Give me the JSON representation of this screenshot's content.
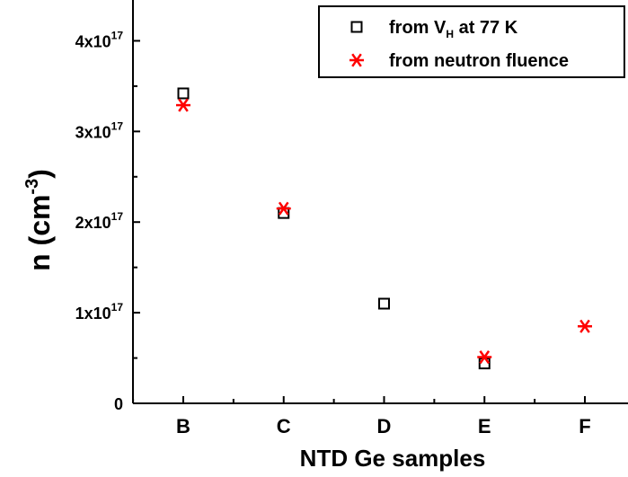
{
  "chart_data": {
    "type": "scatter",
    "xlabel": "NTD Ge samples",
    "ylabel": "n (cm",
    "ylabel_sup": "-3",
    "ylabel_close": ")",
    "categories": [
      "B",
      "C",
      "D",
      "E",
      "F"
    ],
    "ylim": [
      0,
      4.5e+17
    ],
    "y_ticks": [
      {
        "value": 0,
        "label": "0",
        "exp": ""
      },
      {
        "value": 1e+17,
        "label": "1x10",
        "exp": "17"
      },
      {
        "value": 2e+17,
        "label": "2x10",
        "exp": "17"
      },
      {
        "value": 3e+17,
        "label": "3x10",
        "exp": "17"
      },
      {
        "value": 4e+17,
        "label": "4x10",
        "exp": "17"
      }
    ],
    "grid": false,
    "legend_position": "top-right",
    "series": [
      {
        "name": "from V",
        "name_sub": "H",
        "name_rest": " at 77 K",
        "marker": "open-square",
        "color": "#000000",
        "points": [
          {
            "x": "B",
            "y": 3.42e+17
          },
          {
            "x": "C",
            "y": 2.1e+17
          },
          {
            "x": "D",
            "y": 1.1e+17
          },
          {
            "x": "E",
            "y": 4.4e+16
          }
        ]
      },
      {
        "name": "from neutron fluence",
        "marker": "asterisk",
        "color": "#ff0000",
        "points": [
          {
            "x": "B",
            "y": 3.29e+17
          },
          {
            "x": "C",
            "y": 2.15e+17
          },
          {
            "x": "E",
            "y": 5.1e+16
          },
          {
            "x": "F",
            "y": 8.5e+16
          }
        ]
      }
    ]
  }
}
